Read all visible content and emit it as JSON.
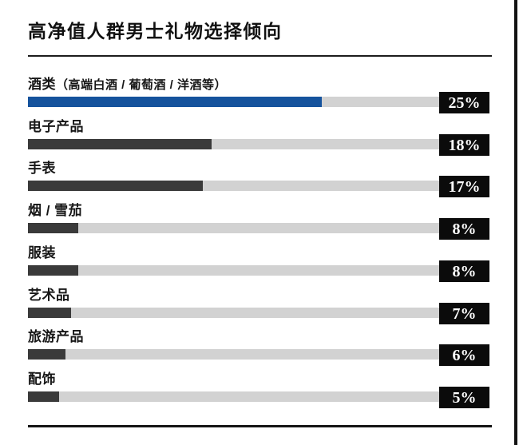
{
  "title": "高净值人群男士礼物选择倾向",
  "colors": {
    "accent_blue": "#15539d",
    "bar_dark": "#3a3a3a",
    "track_gray": "#d2d2d2",
    "badge_black": "#0b0b0b",
    "rule_black": "#1c1c1c"
  },
  "chart_data": {
    "type": "bar",
    "orientation": "horizontal",
    "title": "高净值人群男士礼物选择倾向",
    "categories": [
      "酒类（高端白酒 / 葡萄酒 / 洋酒等）",
      "电子产品",
      "手表",
      "烟 / 雪茄",
      "服装",
      "艺术品",
      "旅游产品",
      "配饰"
    ],
    "values": [
      25,
      18,
      17,
      8,
      8,
      7,
      6,
      5
    ],
    "unit": "%",
    "value_labels": [
      "25%",
      "18%",
      "17%",
      "8%",
      "8%",
      "7%",
      "6%",
      "5%"
    ],
    "legend": "none",
    "grid": false,
    "bars": [
      {
        "label": "酒类",
        "note": "（高端白酒 / 葡萄酒 / 洋酒等）",
        "value": 25,
        "display": "25%",
        "fill_fraction": 0.714,
        "color": "#15539d"
      },
      {
        "label": "电子产品",
        "note": "",
        "value": 18,
        "display": "18%",
        "fill_fraction": 0.447,
        "color": "#3a3a3a"
      },
      {
        "label": "手表",
        "note": "",
        "value": 17,
        "display": "17%",
        "fill_fraction": 0.425,
        "color": "#3a3a3a"
      },
      {
        "label": "烟 / 雪茄",
        "note": "",
        "value": 8,
        "display": "8%",
        "fill_fraction": 0.122,
        "color": "#3a3a3a"
      },
      {
        "label": "服装",
        "note": "",
        "value": 8,
        "display": "8%",
        "fill_fraction": 0.122,
        "color": "#3a3a3a"
      },
      {
        "label": "艺术品",
        "note": "",
        "value": 7,
        "display": "7%",
        "fill_fraction": 0.105,
        "color": "#3a3a3a"
      },
      {
        "label": "旅游产品",
        "note": "",
        "value": 6,
        "display": "6%",
        "fill_fraction": 0.091,
        "color": "#3a3a3a"
      },
      {
        "label": "配饰",
        "note": "",
        "value": 5,
        "display": "5%",
        "fill_fraction": 0.076,
        "color": "#3a3a3a"
      }
    ]
  }
}
